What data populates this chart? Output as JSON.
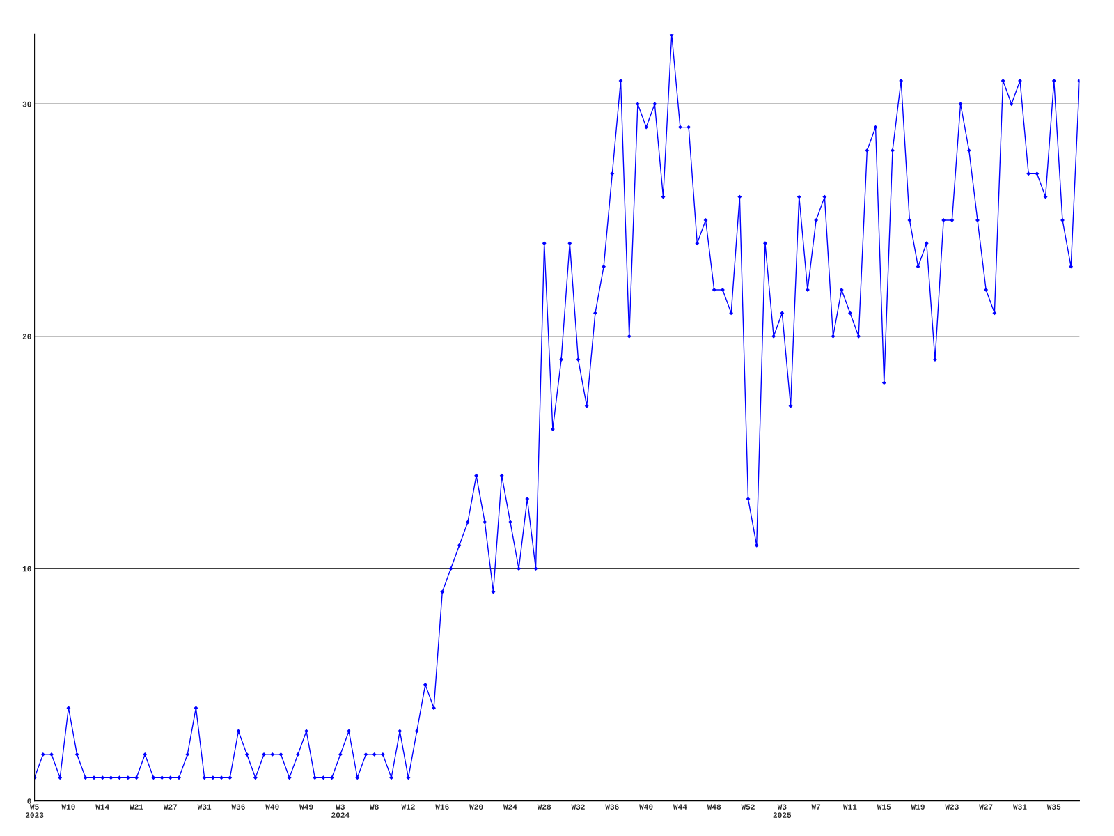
{
  "chart_data": {
    "type": "line",
    "categories": [
      "W5\n2023",
      null,
      null,
      null,
      "W10",
      null,
      null,
      null,
      "W14",
      null,
      null,
      null,
      "W21",
      null,
      null,
      null,
      "W27",
      null,
      null,
      null,
      "W31",
      null,
      null,
      null,
      "W36",
      null,
      null,
      null,
      "W40",
      null,
      null,
      null,
      "W49",
      null,
      null,
      null,
      "W3\n2024",
      null,
      null,
      null,
      "W8",
      null,
      null,
      null,
      "W12",
      null,
      null,
      null,
      "W16",
      null,
      null,
      null,
      "W20",
      null,
      null,
      null,
      "W24",
      null,
      null,
      null,
      "W28",
      null,
      null,
      null,
      "W32",
      null,
      null,
      null,
      "W36",
      null,
      null,
      null,
      "W40",
      null,
      null,
      null,
      "W44",
      null,
      null,
      null,
      "W48",
      null,
      null,
      null,
      "W52",
      null,
      null,
      null,
      "W3\n2025",
      null,
      null,
      null,
      "W7",
      null,
      null,
      null,
      "W11",
      null,
      null,
      null,
      "W15",
      null,
      null,
      null,
      "W19",
      null,
      null,
      null,
      "W23",
      null,
      null,
      null,
      "W27",
      null,
      null,
      null,
      "W31",
      null,
      null,
      null,
      "W35",
      null,
      null,
      null
    ],
    "series": [
      {
        "color": "#0000ff",
        "values": [
          1,
          2,
          2,
          1,
          4,
          2,
          1,
          1,
          1,
          1,
          1,
          1,
          1,
          2,
          1,
          1,
          1,
          1,
          2,
          4,
          1,
          1,
          1,
          1,
          3,
          2,
          1,
          2,
          2,
          2,
          1,
          2,
          3,
          1,
          1,
          1,
          2,
          3,
          1,
          2,
          2,
          2,
          1,
          3,
          1,
          3,
          5,
          4,
          9,
          10,
          11,
          12,
          14,
          12,
          9,
          14,
          12,
          10,
          13,
          10,
          24,
          16,
          19,
          24,
          19,
          17,
          21,
          23,
          27,
          31,
          20,
          30,
          29,
          30,
          26,
          33,
          29,
          29,
          24,
          25,
          22,
          22,
          21,
          26,
          13,
          11,
          24,
          20,
          21,
          17,
          26,
          22,
          25,
          26,
          20,
          22,
          21,
          20,
          28,
          29,
          18,
          28,
          31,
          25,
          23,
          24,
          19,
          25,
          25,
          30,
          28,
          25,
          22,
          21,
          31,
          30,
          31,
          27,
          27,
          26,
          31,
          25,
          23,
          31
        ]
      }
    ],
    "ylim": [
      0,
      33
    ],
    "yticks": [
      0,
      10,
      20,
      30
    ],
    "grid": "y",
    "marker": "diamond",
    "line_style": "solid",
    "legend": false
  }
}
